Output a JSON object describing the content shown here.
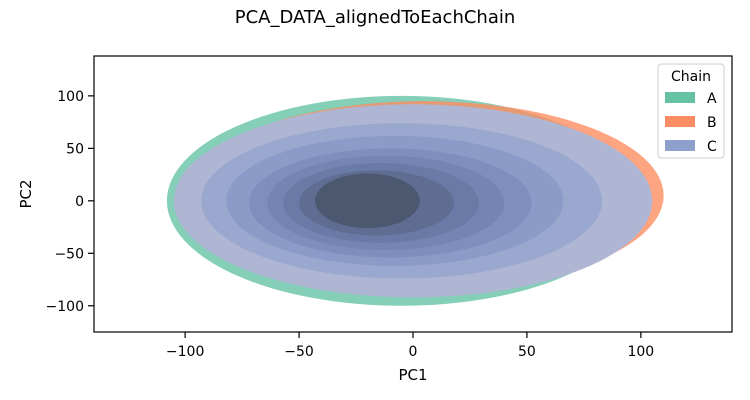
{
  "chart_data": {
    "type": "kde-contour",
    "title": "PCA_DATA_alignedToEachChain",
    "xlabel": "PC1",
    "ylabel": "PC2",
    "xlim": [
      -140,
      140
    ],
    "ylim": [
      -125,
      138
    ],
    "xticks": [
      -100,
      -50,
      0,
      50,
      100
    ],
    "yticks": [
      -100,
      -50,
      0,
      50,
      100
    ],
    "grid": false,
    "legend": {
      "title": "Chain",
      "placement": "top-right",
      "entries": [
        "A",
        "B",
        "C"
      ]
    },
    "series": [
      {
        "name": "A",
        "color": "#66c2a5",
        "levels": [
          {
            "center": [
              -5,
              0
            ],
            "rx": 103,
            "ry": 100
          }
        ]
      },
      {
        "name": "B",
        "color": "#fc8d62",
        "levels": [
          {
            "center": [
              5,
              5
            ],
            "rx": 105,
            "ry": 90
          },
          {
            "center": [
              5,
              3
            ],
            "rx": 88,
            "ry": 72
          },
          {
            "center": [
              5,
              3
            ],
            "rx": 70,
            "ry": 55
          }
        ]
      },
      {
        "name": "C",
        "color": "#8da0cb",
        "levels": [
          {
            "center": [
              0,
              0
            ],
            "rx": 105,
            "ry": 92
          },
          {
            "center": [
              -5,
              0
            ],
            "rx": 88,
            "ry": 74
          },
          {
            "center": [
              -8,
              0
            ],
            "rx": 74,
            "ry": 62
          },
          {
            "center": [
              -10,
              -2
            ],
            "rx": 62,
            "ry": 52
          },
          {
            "center": [
              -12,
              -2
            ],
            "rx": 52,
            "ry": 45
          },
          {
            "center": [
              -14,
              -2
            ],
            "rx": 43,
            "ry": 38
          },
          {
            "center": [
              -16,
              -2
            ],
            "rx": 34,
            "ry": 31
          },
          {
            "center": [
              -20,
              0
            ],
            "rx": 23,
            "ry": 26
          }
        ]
      }
    ]
  }
}
